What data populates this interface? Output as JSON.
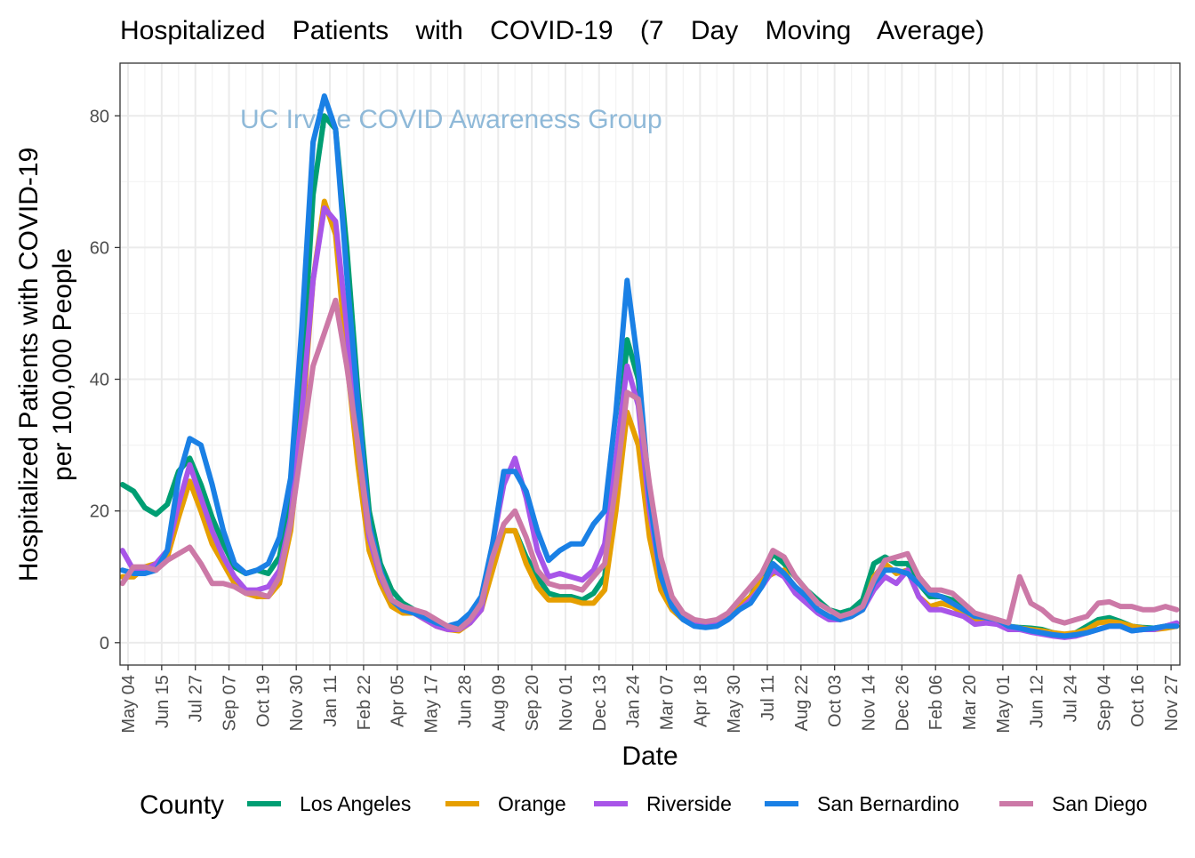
{
  "chart_data": {
    "type": "line",
    "title": "Hospitalized Patients with COVID-19 (7 Day Moving Average)",
    "watermark": "UC Irvine COVID Awareness Group",
    "xlabel": "Date",
    "ylabel_lines": [
      "Hospitalized Patients with COVID-19",
      "per 100,000 People"
    ],
    "ylim": [
      -3.4,
      88
    ],
    "yticks": [
      0,
      20,
      40,
      60,
      80
    ],
    "xlim": [
      "2020-04-24",
      "2023-12-08"
    ],
    "xticks": [
      "2020-05-04",
      "2020-06-15",
      "2020-07-27",
      "2020-09-07",
      "2020-10-19",
      "2020-11-30",
      "2021-01-11",
      "2021-02-22",
      "2021-04-05",
      "2021-05-17",
      "2021-06-28",
      "2021-08-09",
      "2021-09-20",
      "2021-11-01",
      "2021-12-13",
      "2022-01-24",
      "2022-03-07",
      "2022-04-18",
      "2022-05-30",
      "2022-07-11",
      "2022-08-22",
      "2022-10-03",
      "2022-11-14",
      "2022-12-26",
      "2023-02-06",
      "2023-03-20",
      "2023-05-01",
      "2023-06-12",
      "2023-07-24",
      "2023-09-04",
      "2023-10-16",
      "2023-11-27"
    ],
    "xtick_labels": [
      "May 04",
      "Jun 15",
      "Jul 27",
      "Sep 07",
      "Oct 19",
      "Nov 30",
      "Jan 11",
      "Feb 22",
      "Apr 05",
      "May 17",
      "Jun 28",
      "Aug 09",
      "Sep 20",
      "Nov 01",
      "Dec 13",
      "Jan 24",
      "Mar 07",
      "Apr 18",
      "May 30",
      "Jul 11",
      "Aug 22",
      "Oct 03",
      "Nov 14",
      "Dec 26",
      "Feb 06",
      "Mar 20",
      "May 01",
      "Jun 12",
      "Jul 24",
      "Sep 04",
      "Oct 16",
      "Nov 27"
    ],
    "grid": true,
    "legend": {
      "title": "County",
      "position": "bottom"
    },
    "x": [
      "2020-04-27",
      "2020-05-11",
      "2020-05-25",
      "2020-06-08",
      "2020-06-22",
      "2020-07-06",
      "2020-07-20",
      "2020-08-03",
      "2020-08-17",
      "2020-08-31",
      "2020-09-14",
      "2020-09-28",
      "2020-10-12",
      "2020-10-26",
      "2020-11-09",
      "2020-11-23",
      "2020-12-07",
      "2020-12-21",
      "2021-01-04",
      "2021-01-18",
      "2021-02-01",
      "2021-02-15",
      "2021-03-01",
      "2021-03-15",
      "2021-03-29",
      "2021-04-12",
      "2021-04-26",
      "2021-05-10",
      "2021-05-24",
      "2021-06-07",
      "2021-06-21",
      "2021-07-05",
      "2021-07-19",
      "2021-08-02",
      "2021-08-16",
      "2021-08-30",
      "2021-09-13",
      "2021-09-27",
      "2021-10-11",
      "2021-10-25",
      "2021-11-08",
      "2021-11-22",
      "2021-12-06",
      "2021-12-20",
      "2022-01-03",
      "2022-01-17",
      "2022-01-31",
      "2022-02-14",
      "2022-02-28",
      "2022-03-14",
      "2022-03-28",
      "2022-04-11",
      "2022-04-25",
      "2022-05-09",
      "2022-05-23",
      "2022-06-06",
      "2022-06-20",
      "2022-07-04",
      "2022-07-18",
      "2022-08-01",
      "2022-08-15",
      "2022-08-29",
      "2022-09-12",
      "2022-09-26",
      "2022-10-10",
      "2022-10-24",
      "2022-11-07",
      "2022-11-21",
      "2022-12-05",
      "2022-12-19",
      "2023-01-02",
      "2023-01-16",
      "2023-01-30",
      "2023-02-13",
      "2023-02-27",
      "2023-03-13",
      "2023-03-27",
      "2023-04-10",
      "2023-04-24",
      "2023-05-08",
      "2023-05-22",
      "2023-06-05",
      "2023-06-19",
      "2023-07-03",
      "2023-07-17",
      "2023-07-31",
      "2023-08-14",
      "2023-08-28",
      "2023-09-11",
      "2023-09-25",
      "2023-10-09",
      "2023-10-23",
      "2023-11-06",
      "2023-11-20",
      "2023-12-04"
    ],
    "series": [
      {
        "name": "Los Angeles",
        "color": "#009E73",
        "values": [
          24,
          23,
          20.5,
          19.5,
          21,
          26,
          28,
          24,
          19,
          15,
          11.5,
          10.5,
          11,
          10.5,
          13,
          22,
          40,
          68,
          80,
          78,
          60,
          38,
          20,
          12,
          8,
          6,
          5,
          4,
          3,
          2.5,
          2.5,
          3.5,
          6,
          12,
          17,
          17,
          13,
          10,
          7.5,
          7,
          7,
          6.5,
          7.5,
          10,
          25,
          46,
          40,
          22,
          11,
          6,
          4,
          2.8,
          2.5,
          3,
          4,
          5.5,
          7,
          10,
          13.5,
          12,
          10,
          8,
          6.5,
          5,
          4.5,
          5,
          6.5,
          12,
          13,
          12,
          12,
          9,
          7,
          7,
          6.5,
          5,
          4,
          3.5,
          3,
          2.5,
          2.3,
          2.2,
          2,
          1.5,
          1.2,
          1.5,
          2.5,
          3.5,
          3.8,
          3.2,
          2.5,
          2.3,
          2.2,
          2.5,
          2.5
        ]
      },
      {
        "name": "Orange",
        "color": "#E69F00",
        "values": [
          10,
          10,
          11.5,
          12,
          13,
          19,
          24.5,
          20,
          15,
          12,
          9,
          7.5,
          7,
          7,
          9,
          17,
          33,
          55,
          67,
          62,
          43,
          27,
          14,
          9,
          5.5,
          4.5,
          4.5,
          3.5,
          2.5,
          2,
          1.8,
          3,
          5,
          11,
          17,
          17,
          12,
          8.5,
          6.5,
          6.5,
          6.5,
          6,
          6,
          8,
          20,
          35,
          30,
          16,
          8,
          5,
          3.5,
          2.8,
          2.8,
          3,
          4,
          5.5,
          7,
          9.5,
          10.5,
          11,
          8,
          7,
          5,
          4,
          3.5,
          4,
          5,
          10,
          12,
          10.5,
          11,
          7,
          5.5,
          6,
          5.5,
          4.5,
          3.5,
          3.5,
          3,
          2.5,
          2.2,
          2,
          1.8,
          1.5,
          1.3,
          1.5,
          2,
          3,
          3.2,
          3,
          2.5,
          2.2,
          2,
          2.2,
          2.5
        ]
      },
      {
        "name": "Riverside",
        "color": "#A855E8",
        "values": [
          14,
          11,
          11,
          12,
          14,
          21,
          27,
          22,
          17,
          13,
          10,
          8,
          8,
          8.5,
          11,
          19,
          35,
          55,
          66,
          64,
          48,
          30,
          16,
          10,
          6.5,
          5,
          4.5,
          3.5,
          2.5,
          2,
          2,
          3,
          5,
          15,
          24,
          28,
          22,
          14,
          10,
          10.5,
          10,
          9.5,
          11,
          15,
          28,
          42,
          36,
          20,
          10,
          6,
          4,
          3,
          2.5,
          2.8,
          3.5,
          5,
          6.5,
          8.5,
          11,
          10,
          7.5,
          6,
          4.5,
          3.5,
          3.5,
          4,
          5,
          8,
          10,
          9,
          11,
          7,
          5,
          5,
          4.5,
          4,
          2.8,
          3,
          2.8,
          2,
          2,
          1.6,
          1.3,
          1,
          0.8,
          1,
          1.5,
          2,
          2.5,
          2.5,
          1.8,
          2,
          2,
          2.5,
          3
        ]
      },
      {
        "name": "San Bernardino",
        "color": "#1A80E5",
        "values": [
          11,
          10.5,
          10.5,
          11,
          14,
          25,
          31,
          30,
          24,
          17,
          12,
          10.5,
          11,
          12,
          16,
          25,
          48,
          76,
          83,
          78,
          56,
          36,
          18,
          11,
          6.5,
          5,
          4.5,
          3.8,
          3,
          2.5,
          3,
          4.5,
          7,
          15,
          26,
          26,
          23,
          17,
          12.5,
          14,
          15,
          15,
          18,
          20,
          35,
          55,
          42,
          22,
          10,
          5.5,
          3.5,
          2.5,
          2.3,
          2.5,
          3.5,
          5,
          6,
          8.5,
          12,
          10.5,
          8.5,
          7,
          5,
          4,
          3.5,
          4,
          5,
          9,
          11,
          11,
          10.5,
          9,
          7.5,
          7,
          6,
          5,
          4,
          3.8,
          3.5,
          2.5,
          2.2,
          1.8,
          1.5,
          1.2,
          1,
          1.2,
          1.5,
          2,
          2.5,
          2.5,
          1.8,
          2,
          2.2,
          2.5,
          2.5
        ]
      },
      {
        "name": "San Diego",
        "color": "#CC79A7",
        "values": [
          9,
          11.5,
          11.5,
          11,
          12.5,
          13.5,
          14.5,
          12,
          9,
          9,
          8.5,
          7.5,
          7.5,
          7,
          10,
          18,
          30,
          42,
          47,
          52,
          42,
          30,
          17,
          10.5,
          6.5,
          5.5,
          5,
          4.5,
          3.5,
          2.5,
          2,
          3.5,
          6,
          13,
          18,
          20,
          16,
          11,
          9,
          8.5,
          8.5,
          8,
          10,
          12,
          24,
          38,
          37,
          24,
          13,
          7,
          4.5,
          3.5,
          3.2,
          3.5,
          4.5,
          6.5,
          8.5,
          10.5,
          14,
          13,
          10,
          8,
          6,
          5,
          4,
          4.5,
          5.5,
          9.5,
          12.5,
          13,
          13.5,
          10,
          8,
          8,
          7.5,
          6,
          4.5,
          4,
          3.5,
          3,
          10,
          6,
          5,
          3.5,
          3,
          3.5,
          4,
          6,
          6.2,
          5.5,
          5.5,
          5,
          5,
          5.5,
          5
        ]
      }
    ]
  }
}
